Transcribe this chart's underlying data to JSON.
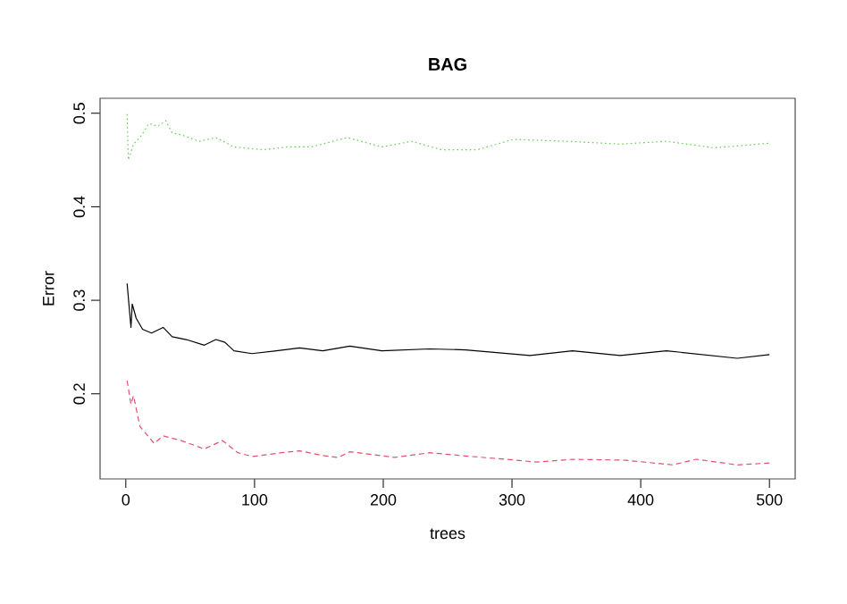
{
  "chart_data": {
    "type": "line",
    "title": "BAG",
    "xlabel": "trees",
    "ylabel": "Error",
    "xlim": [
      -20,
      520
    ],
    "ylim": [
      0.109,
      0.516
    ],
    "xticks": [
      0,
      100,
      200,
      300,
      400,
      500
    ],
    "yticks": [
      0.2,
      0.3,
      0.4,
      0.5
    ],
    "series": [
      {
        "color": "#000000",
        "line_style": "solid",
        "x": [
          1,
          4,
          5,
          8,
          13,
          20,
          29,
          36,
          47,
          61,
          70,
          77,
          84,
          98,
          117,
          135,
          153,
          174,
          199,
          236,
          264,
          314,
          347,
          384,
          420,
          475,
          500
        ],
        "values": [
          0.318,
          0.271,
          0.296,
          0.281,
          0.269,
          0.265,
          0.271,
          0.261,
          0.258,
          0.252,
          0.258,
          0.255,
          0.246,
          0.243,
          0.246,
          0.249,
          0.246,
          0.251,
          0.246,
          0.248,
          0.247,
          0.241,
          0.246,
          0.241,
          0.246,
          0.238,
          0.242
        ]
      },
      {
        "color": "#df536b",
        "line_style": "dashed",
        "x": [
          1,
          4,
          6,
          11,
          22,
          29,
          43,
          61,
          75,
          87,
          98,
          121,
          135,
          153,
          165,
          174,
          209,
          236,
          268,
          296,
          319,
          347,
          388,
          425,
          443,
          475,
          500
        ],
        "values": [
          0.214,
          0.189,
          0.198,
          0.165,
          0.147,
          0.155,
          0.15,
          0.141,
          0.15,
          0.137,
          0.133,
          0.137,
          0.139,
          0.134,
          0.132,
          0.138,
          0.132,
          0.137,
          0.133,
          0.13,
          0.127,
          0.13,
          0.129,
          0.124,
          0.13,
          0.124,
          0.126
        ]
      },
      {
        "color": "#61d04f",
        "line_style": "dotted",
        "x": [
          1,
          2,
          6,
          11,
          18,
          25,
          31,
          36,
          43,
          57,
          70,
          84,
          107,
          126,
          144,
          172,
          199,
          222,
          245,
          273,
          301,
          343,
          384,
          420,
          457,
          500
        ],
        "values": [
          0.499,
          0.45,
          0.467,
          0.474,
          0.489,
          0.486,
          0.492,
          0.479,
          0.477,
          0.47,
          0.474,
          0.464,
          0.461,
          0.464,
          0.464,
          0.474,
          0.464,
          0.47,
          0.461,
          0.461,
          0.472,
          0.47,
          0.467,
          0.47,
          0.463,
          0.468
        ]
      }
    ]
  }
}
